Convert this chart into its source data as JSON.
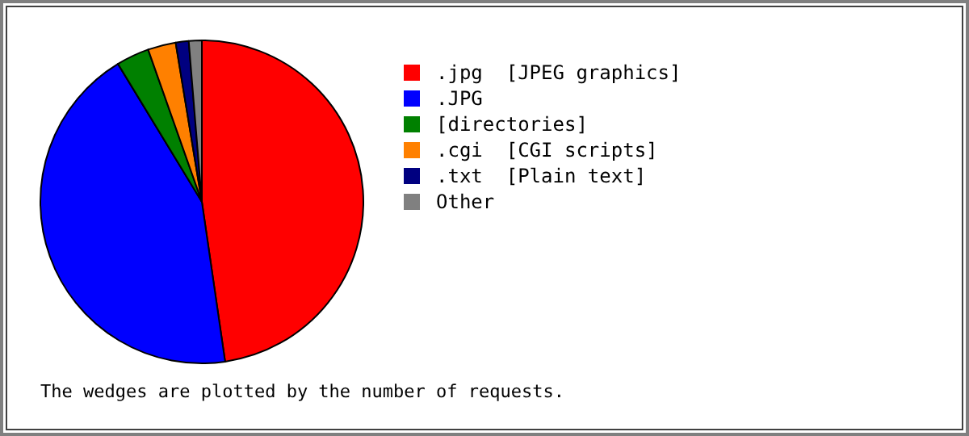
{
  "chart_data": {
    "type": "pie",
    "categories": [
      ".jpg  [JPEG graphics]",
      ".JPG",
      "[directories]",
      ".cgi  [CGI scripts]",
      ".txt  [Plain text]",
      "Other"
    ],
    "values": [
      47.7,
      43.6,
      3.3,
      2.8,
      1.3,
      1.3
    ],
    "colors": [
      "#ff0000",
      "#0000ff",
      "#008000",
      "#ff8000",
      "#000080",
      "#808080"
    ],
    "legend": "right",
    "annotations": [
      "The wedges are plotted by the number of requests."
    ]
  }
}
